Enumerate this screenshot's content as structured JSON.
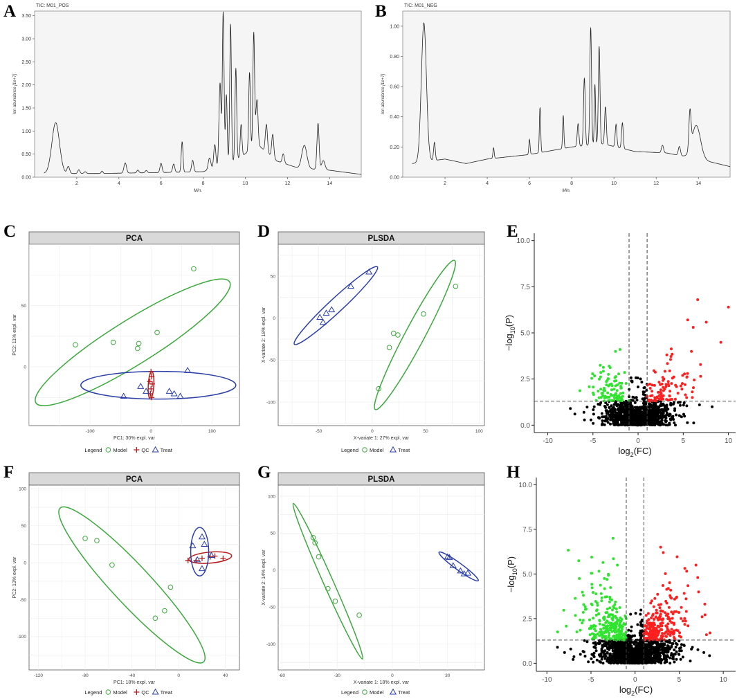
{
  "colors": {
    "model": "#3aa83a",
    "qc": "#b71c1c",
    "treat": "#2b3ea8",
    "up": "#ff1f1f",
    "down": "#2fe32f",
    "ns": "#000000",
    "strip": "#d9d9d9"
  },
  "chart_data": [
    {
      "id": "A",
      "type": "line",
      "title": "TIC: M01_POS",
      "xlabel": "Min.",
      "ylabel": "Ion abundance [1e+7]",
      "xlim": [
        0,
        15.5
      ],
      "ylim": [
        0,
        3.6
      ],
      "xticks": [
        2,
        4,
        6,
        8,
        10,
        12,
        14
      ],
      "yticks": [
        0,
        0.5,
        1.0,
        1.5,
        2.0,
        2.5,
        3.0,
        3.5
      ],
      "ytick_labels": [
        "0.00",
        "0.50",
        "1.00",
        "1.50",
        "2.00",
        "2.50",
        "3.00",
        "3.50"
      ],
      "baseline": [
        [
          0.5,
          0.08
        ],
        [
          3,
          0.08
        ],
        [
          6,
          0.1
        ],
        [
          8,
          0.12
        ],
        [
          9.5,
          0.35
        ],
        [
          10.6,
          0.7
        ],
        [
          11.5,
          0.35
        ],
        [
          12.5,
          0.2
        ],
        [
          14,
          0.15
        ],
        [
          15.5,
          0.06
        ]
      ],
      "peaks": [
        [
          1.0,
          1.1,
          0.18
        ],
        [
          1.6,
          0.15,
          0.06
        ],
        [
          2.1,
          0.08,
          0.05
        ],
        [
          2.4,
          0.04,
          0.05
        ],
        [
          3.2,
          0.05,
          0.04
        ],
        [
          4.3,
          0.22,
          0.06
        ],
        [
          4.9,
          0.06,
          0.05
        ],
        [
          5.3,
          0.05,
          0.05
        ],
        [
          6.0,
          0.2,
          0.05
        ],
        [
          6.6,
          0.18,
          0.05
        ],
        [
          7.0,
          0.66,
          0.04
        ],
        [
          7.5,
          0.25,
          0.05
        ],
        [
          8.3,
          0.25,
          0.06
        ],
        [
          8.55,
          0.5,
          0.05
        ],
        [
          8.8,
          1.8,
          0.05
        ],
        [
          8.95,
          3.3,
          0.04
        ],
        [
          9.1,
          1.5,
          0.04
        ],
        [
          9.3,
          3.0,
          0.04
        ],
        [
          9.55,
          2.0,
          0.04
        ],
        [
          9.8,
          0.7,
          0.04
        ],
        [
          10.2,
          1.7,
          0.04
        ],
        [
          10.4,
          2.5,
          0.04
        ],
        [
          10.55,
          1.0,
          0.05
        ],
        [
          11.0,
          0.6,
          0.05
        ],
        [
          11.3,
          0.5,
          0.05
        ],
        [
          11.8,
          0.2,
          0.05
        ],
        [
          12.8,
          0.5,
          0.12
        ],
        [
          13.45,
          1.0,
          0.05
        ],
        [
          13.7,
          0.2,
          0.08
        ]
      ]
    },
    {
      "id": "B",
      "type": "line",
      "title": "TIC: M01_NEG",
      "xlabel": "Min.",
      "ylabel": "Ion abundance [1e+7]",
      "xlim": [
        0,
        15.5
      ],
      "ylim": [
        0,
        1.1
      ],
      "xticks": [
        2,
        4,
        6,
        8,
        10,
        12,
        14
      ],
      "yticks": [
        0,
        0.2,
        0.4,
        0.6,
        0.8,
        1.0
      ],
      "ytick_labels": [
        "0.00",
        "0.20",
        "0.40",
        "0.60",
        "0.80",
        "1.00"
      ],
      "baseline": [
        [
          0,
          0.08
        ],
        [
          0.9,
          0.1
        ],
        [
          2,
          0.12
        ],
        [
          3,
          0.09
        ],
        [
          4,
          0.12
        ],
        [
          6,
          0.15
        ],
        [
          8,
          0.2
        ],
        [
          9.5,
          0.22
        ],
        [
          11,
          0.17
        ],
        [
          12.5,
          0.16
        ],
        [
          14,
          0.12
        ],
        [
          15.5,
          0.07
        ]
      ],
      "peaks": [
        [
          1.0,
          0.92,
          0.12
        ],
        [
          1.5,
          0.12,
          0.04
        ],
        [
          4.3,
          0.07,
          0.03
        ],
        [
          6.0,
          0.1,
          0.03
        ],
        [
          6.5,
          0.3,
          0.03
        ],
        [
          7.6,
          0.22,
          0.03
        ],
        [
          8.3,
          0.15,
          0.04
        ],
        [
          8.6,
          0.45,
          0.04
        ],
        [
          8.9,
          0.78,
          0.04
        ],
        [
          9.1,
          0.4,
          0.03
        ],
        [
          9.3,
          0.65,
          0.04
        ],
        [
          9.6,
          0.25,
          0.04
        ],
        [
          10.1,
          0.15,
          0.04
        ],
        [
          10.4,
          0.17,
          0.04
        ],
        [
          12.3,
          0.05,
          0.05
        ],
        [
          13.1,
          0.06,
          0.05
        ],
        [
          13.6,
          0.25,
          0.05
        ],
        [
          13.9,
          0.22,
          0.2
        ]
      ]
    },
    {
      "id": "C",
      "type": "scatter",
      "title": "PCA",
      "xlabel": "PC1: 30% expl. var",
      "ylabel": "PC2: 11% expl. var",
      "xlim": [
        -200,
        145
      ],
      "ylim": [
        -48,
        100
      ],
      "xticks": [
        -100,
        0,
        100
      ],
      "yticks": [
        0,
        50
      ],
      "series": [
        {
          "name": "Model",
          "marker": "circle",
          "points": [
            [
              70,
              80
            ],
            [
              -124,
              18
            ],
            [
              -62,
              20
            ],
            [
              -20,
              19
            ],
            [
              -22,
              15
            ],
            [
              10,
              28
            ]
          ]
        },
        {
          "name": "QC",
          "marker": "plus",
          "points": [
            [
              0,
              -4
            ],
            [
              1,
              -8
            ],
            [
              -2,
              -12
            ],
            [
              2,
              -14
            ],
            [
              0,
              -18
            ],
            [
              -1,
              -22
            ],
            [
              1,
              -25
            ]
          ]
        },
        {
          "name": "Treat",
          "marker": "triangle",
          "points": [
            [
              -45,
              -24
            ],
            [
              -17,
              -16
            ],
            [
              30,
              -20
            ],
            [
              38,
              -22
            ],
            [
              48,
              -24
            ],
            [
              60,
              -3
            ],
            [
              -8,
              -20
            ]
          ]
        }
      ],
      "ellipses": [
        {
          "group": "Model",
          "center": [
            -30,
            20
          ],
          "rx": 165,
          "ry": 32,
          "angle_deg": 32
        },
        {
          "group": "QC",
          "center": [
            0,
            -15
          ],
          "rx": 20,
          "ry": 4,
          "angle_deg": 87
        },
        {
          "group": "Treat",
          "center": [
            12,
            -15
          ],
          "rx": 112,
          "ry": 20,
          "angle_deg": 0
        }
      ],
      "legend": {
        "title": "Legend",
        "items": [
          "Model",
          "QC",
          "Treat"
        ]
      }
    },
    {
      "id": "D",
      "type": "scatter",
      "title": "PLSDA",
      "xlabel": "X-variate 1: 27% expl. var",
      "ylabel": "X-variate 2: 18% expl. var",
      "xlim": [
        -88,
        105
      ],
      "ylim": [
        -128,
        88
      ],
      "xticks": [
        -50,
        0,
        50,
        100
      ],
      "yticks": [
        -100,
        -50,
        0,
        50
      ],
      "series": [
        {
          "name": "Model",
          "marker": "circle",
          "points": [
            [
              78,
              38
            ],
            [
              48,
              5
            ],
            [
              24,
              -20
            ],
            [
              20,
              -18
            ],
            [
              16,
              -35
            ],
            [
              6,
              -84
            ]
          ]
        },
        {
          "name": "Treat",
          "marker": "triangle",
          "points": [
            [
              -3,
              55
            ],
            [
              -20,
              38
            ],
            [
              -38,
              10
            ],
            [
              -43,
              6
            ],
            [
              -49,
              1
            ],
            [
              -46,
              -5
            ]
          ]
        }
      ],
      "ellipses": [
        {
          "group": "Model",
          "center": [
            40,
            -20
          ],
          "rx": 122,
          "ry": 14,
          "angle_deg": 62
        },
        {
          "group": "Treat",
          "center": [
            -34,
            15
          ],
          "rx": 82,
          "ry": 10,
          "angle_deg": 43
        }
      ],
      "legend": {
        "title": "Legend",
        "items": [
          "Model",
          "Treat"
        ]
      }
    },
    {
      "id": "E",
      "type": "scatter",
      "title": "",
      "xlabel": "log2(FC)",
      "ylabel": "-log10(P)",
      "xlim": [
        -11.5,
        10.8
      ],
      "ylim": [
        -0.4,
        10.4
      ],
      "xticks": [
        -10,
        -5,
        0,
        5,
        10
      ],
      "yticks": [
        0.0,
        2.5,
        5.0,
        7.5,
        10.0
      ],
      "ytick_labels": [
        "0.0",
        "2.5",
        "5.0",
        "7.5",
        "10.0"
      ],
      "thresholds": {
        "fc": [
          -1,
          1
        ],
        "p": 1.3
      },
      "highlight_up": [
        [
          6.6,
          6.8
        ],
        [
          10,
          6.4
        ],
        [
          5.5,
          5.7
        ],
        [
          6.1,
          5.3
        ],
        [
          5.9,
          4
        ],
        [
          5.4,
          2.6
        ],
        [
          5.2,
          2.2
        ],
        [
          6,
          1.8
        ]
      ],
      "highlight_down": [
        [
          -2,
          4.1
        ],
        [
          -2.5,
          4
        ],
        [
          -3.2,
          3.2
        ],
        [
          -4.3,
          2.5
        ]
      ]
    },
    {
      "id": "F",
      "type": "scatter",
      "title": "PCA",
      "xlabel": "PC1: 18% expl. var",
      "ylabel": "PC2: 13% expl. var",
      "xlim": [
        -128,
        52
      ],
      "ylim": [
        -145,
        105
      ],
      "xticks": [
        -120,
        -80,
        -40,
        0,
        40
      ],
      "yticks": [
        -100,
        -50,
        0,
        50,
        100
      ],
      "series": [
        {
          "name": "Model",
          "marker": "circle",
          "points": [
            [
              -80,
              33
            ],
            [
              -70,
              30
            ],
            [
              -57,
              -3
            ],
            [
              -7,
              -33
            ],
            [
              -12,
              -65
            ],
            [
              -20,
              -75
            ]
          ]
        },
        {
          "name": "QC",
          "marker": "plus",
          "points": [
            [
              15,
              3
            ],
            [
              20,
              6
            ],
            [
              27,
              8
            ],
            [
              31,
              9
            ],
            [
              38,
              6
            ],
            [
              8,
              3
            ]
          ]
        },
        {
          "name": "Treat",
          "marker": "triangle",
          "points": [
            [
              20,
              35
            ],
            [
              22,
              25
            ],
            [
              12,
              23
            ],
            [
              16,
              4
            ],
            [
              20,
              -8
            ],
            [
              28,
              10
            ]
          ]
        }
      ],
      "ellipses": [
        {
          "group": "Model",
          "center": [
            -40,
            -30
          ],
          "rx": 152,
          "ry": 28,
          "angle_deg": -47
        },
        {
          "group": "QC",
          "center": [
            27,
            7
          ],
          "rx": 31,
          "ry": 8,
          "angle_deg": 5
        },
        {
          "group": "Treat",
          "center": [
            18,
            15
          ],
          "rx": 13,
          "ry": 35,
          "angle_deg": 0
        }
      ],
      "legend": {
        "title": "Legend",
        "items": [
          "Model",
          "QC",
          "Treat"
        ]
      }
    },
    {
      "id": "G",
      "type": "scatter",
      "title": "PLSDA",
      "xlabel": "X-variate 1: 18% expl. var",
      "ylabel": "X-variate 2: 14% expl. var",
      "xlim": [
        -62,
        50
      ],
      "ylim": [
        -135,
        115
      ],
      "xticks": [
        -60,
        -30,
        0,
        30
      ],
      "yticks": [
        -100,
        -50,
        0,
        50,
        100
      ],
      "series": [
        {
          "name": "Model",
          "marker": "circle",
          "points": [
            [
              -43,
              44
            ],
            [
              -42,
              37
            ],
            [
              -40,
              18
            ],
            [
              -35,
              -25
            ],
            [
              -31,
              -42
            ],
            [
              -18,
              -61
            ]
          ]
        },
        {
          "name": "Treat",
          "marker": "triangle",
          "points": [
            [
              30,
              18
            ],
            [
              31,
              17
            ],
            [
              33,
              6
            ],
            [
              37,
              -1
            ],
            [
              39,
              -5
            ],
            [
              41,
              -4
            ]
          ]
        }
      ],
      "ellipses": [
        {
          "group": "Model",
          "center": [
            -35,
            -15
          ],
          "rx": 123,
          "ry": 7,
          "angle_deg": -66
        },
        {
          "group": "Treat",
          "center": [
            36,
            5
          ],
          "rx": 35,
          "ry": 5,
          "angle_deg": -36
        }
      ],
      "legend": {
        "title": "Legend",
        "items": [
          "Model",
          "Treat"
        ]
      }
    },
    {
      "id": "H",
      "type": "scatter",
      "title": "",
      "xlabel": "log2(FC)",
      "ylabel": "-log10(P)",
      "xlim": [
        -11.2,
        11.4
      ],
      "ylim": [
        -0.45,
        10.4
      ],
      "xticks": [
        -10,
        -5,
        0,
        5,
        10
      ],
      "yticks": [
        0.0,
        2.5,
        5.0,
        7.5,
        10.0
      ],
      "ytick_labels": [
        "0.0",
        "2.5",
        "5.0",
        "7.5",
        "10.0"
      ],
      "thresholds": {
        "fc": [
          -1,
          1
        ],
        "p": 1.3
      },
      "highlight_up": [
        [
          2.9,
          6.5
        ],
        [
          3.2,
          6.2
        ],
        [
          6.9,
          5.5
        ],
        [
          7.1,
          4.8
        ],
        [
          7.2,
          4.0
        ],
        [
          7.6,
          2.6
        ],
        [
          6,
          2.1
        ],
        [
          8.5,
          1.7
        ],
        [
          8.1,
          1.6
        ]
      ],
      "highlight_down": [
        [
          -2.5,
          7.0
        ],
        [
          -2.0,
          5.5
        ],
        [
          -3.8,
          3.5
        ],
        [
          -4,
          2.2
        ],
        [
          -5.1,
          1.6
        ]
      ]
    }
  ],
  "panel_labels": [
    "A",
    "B",
    "C",
    "D",
    "E",
    "F",
    "G",
    "H"
  ],
  "legend_labels": {
    "title": "Legend",
    "model": "Model",
    "qc": "QC",
    "treat": "Treat"
  }
}
